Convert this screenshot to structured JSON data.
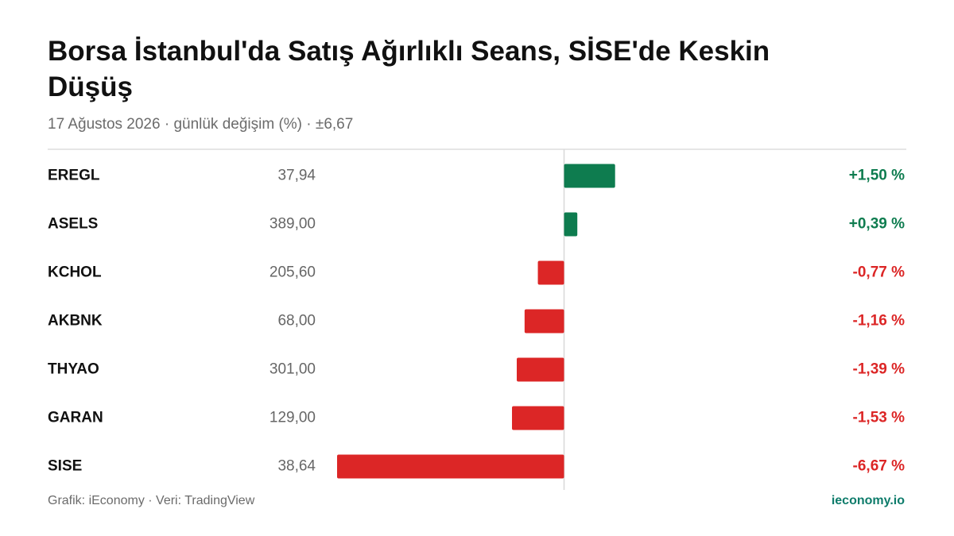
{
  "chart_data": {
    "type": "bar",
    "orientation": "horizontal",
    "title": "Borsa İstanbul'da Satış Ağırlıklı Seans, SİSE'de Keskin Düşüş",
    "subtitle": "17 Ağustos 2026 · günlük değişim (%) · ±6,67",
    "categories": [
      "EREGL",
      "ASELS",
      "KCHOL",
      "AKBNK",
      "THYAO",
      "GARAN",
      "SISE"
    ],
    "prices": [
      "37,94",
      "389,00",
      "205,60",
      "68,00",
      "301,00",
      "129,00",
      "38,64"
    ],
    "values": [
      1.5,
      0.39,
      -0.77,
      -1.16,
      -1.39,
      -1.53,
      -6.67
    ],
    "value_labels": [
      "+1,50 %",
      "+0,39 %",
      "-0,77 %",
      "-1,16 %",
      "-1,39 %",
      "-1,53 %",
      "-6,67 %"
    ],
    "colors": {
      "positive": "#0e7c4f",
      "negative": "#dc2626"
    },
    "xlim": [
      -6.67,
      6.67
    ],
    "source": "Grafik: iEconomy · Veri: TradingView",
    "brand": "ieconomy.io"
  }
}
